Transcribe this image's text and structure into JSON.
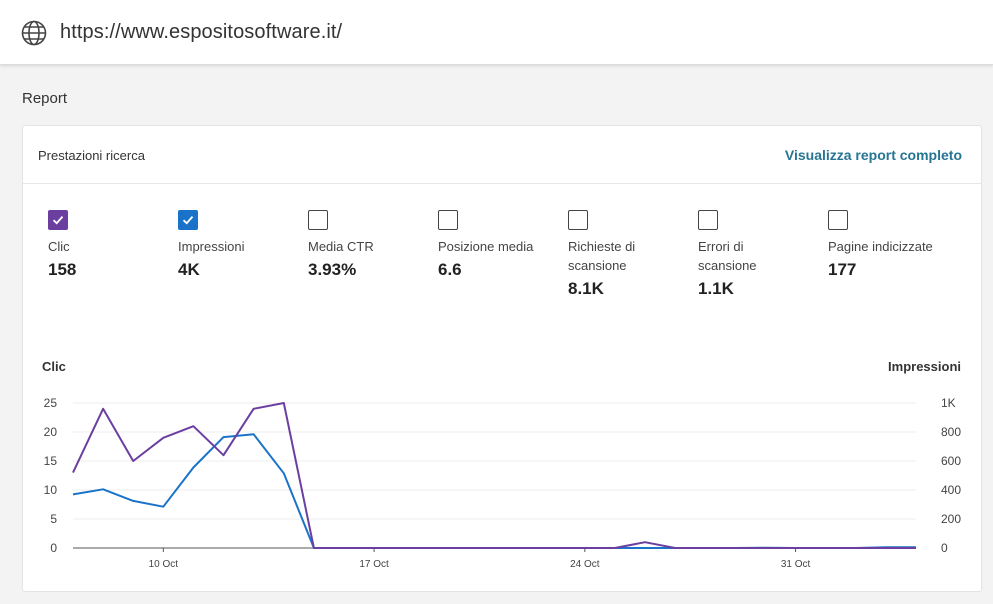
{
  "address_bar": {
    "url": "https://www.espositosoftware.it/",
    "icon": "globe-icon"
  },
  "section_title": "Report",
  "card": {
    "title": "Prestazioni ricerca",
    "link": "Visualizza report completo",
    "metrics": [
      {
        "label": "Clic",
        "value": "158",
        "checked": true,
        "color": "#6b3fa0"
      },
      {
        "label": "Impressioni",
        "value": "4K",
        "checked": true,
        "color": "#1a73c9"
      },
      {
        "label": "Media CTR",
        "value": "3.93%",
        "checked": false
      },
      {
        "label": "Posizione media",
        "value": "6.6",
        "checked": false
      },
      {
        "label": "Richieste di scansione",
        "value": "8.1K",
        "checked": false
      },
      {
        "label": "Errori di scansione",
        "value": "1.1K",
        "checked": false
      },
      {
        "label": "Pagine indicizzate",
        "value": "177",
        "checked": false
      }
    ]
  },
  "chart_data": {
    "type": "line",
    "left_axis_title": "Clic",
    "right_axis_title": "Impressioni",
    "left_ticks": [
      "0",
      "5",
      "10",
      "15",
      "20",
      "25"
    ],
    "right_ticks": [
      "0",
      "200",
      "400",
      "600",
      "800",
      "1K"
    ],
    "ylim_left": [
      0,
      25
    ],
    "ylim_right": [
      0,
      1000
    ],
    "x_tick_labels": [
      {
        "label": "10 Oct",
        "day": 10
      },
      {
        "label": "17 Oct",
        "day": 17
      },
      {
        "label": "24 Oct",
        "day": 24
      },
      {
        "label": "31 Oct",
        "day": 31
      }
    ],
    "x": [
      "7 Oct",
      "8 Oct",
      "9 Oct",
      "10 Oct",
      "11 Oct",
      "12 Oct",
      "13 Oct",
      "14 Oct",
      "15 Oct",
      "16 Oct",
      "17 Oct",
      "18 Oct",
      "19 Oct",
      "20 Oct",
      "21 Oct",
      "22 Oct",
      "23 Oct",
      "24 Oct",
      "25 Oct",
      "26 Oct",
      "27 Oct",
      "28 Oct",
      "29 Oct",
      "30 Oct",
      "31 Oct",
      "1 Nov",
      "2 Nov",
      "3 Nov",
      "4 Nov"
    ],
    "series": [
      {
        "name": "Clic",
        "axis": "left",
        "color": "#6b3fa0",
        "values": [
          13,
          24,
          15,
          19,
          21,
          16,
          24,
          25,
          0,
          0,
          0,
          0,
          0,
          0,
          0,
          0,
          0,
          0,
          0,
          1,
          0,
          0,
          0,
          0,
          0,
          0,
          0,
          0,
          0
        ]
      },
      {
        "name": "Impressioni",
        "axis": "right",
        "color": "#1a73c9",
        "values": [
          370,
          405,
          325,
          285,
          555,
          765,
          785,
          515,
          0,
          0,
          0,
          0,
          0,
          0,
          0,
          0,
          0,
          0,
          0,
          0,
          0,
          0,
          0,
          2,
          0,
          0,
          0,
          5,
          5
        ]
      }
    ]
  }
}
